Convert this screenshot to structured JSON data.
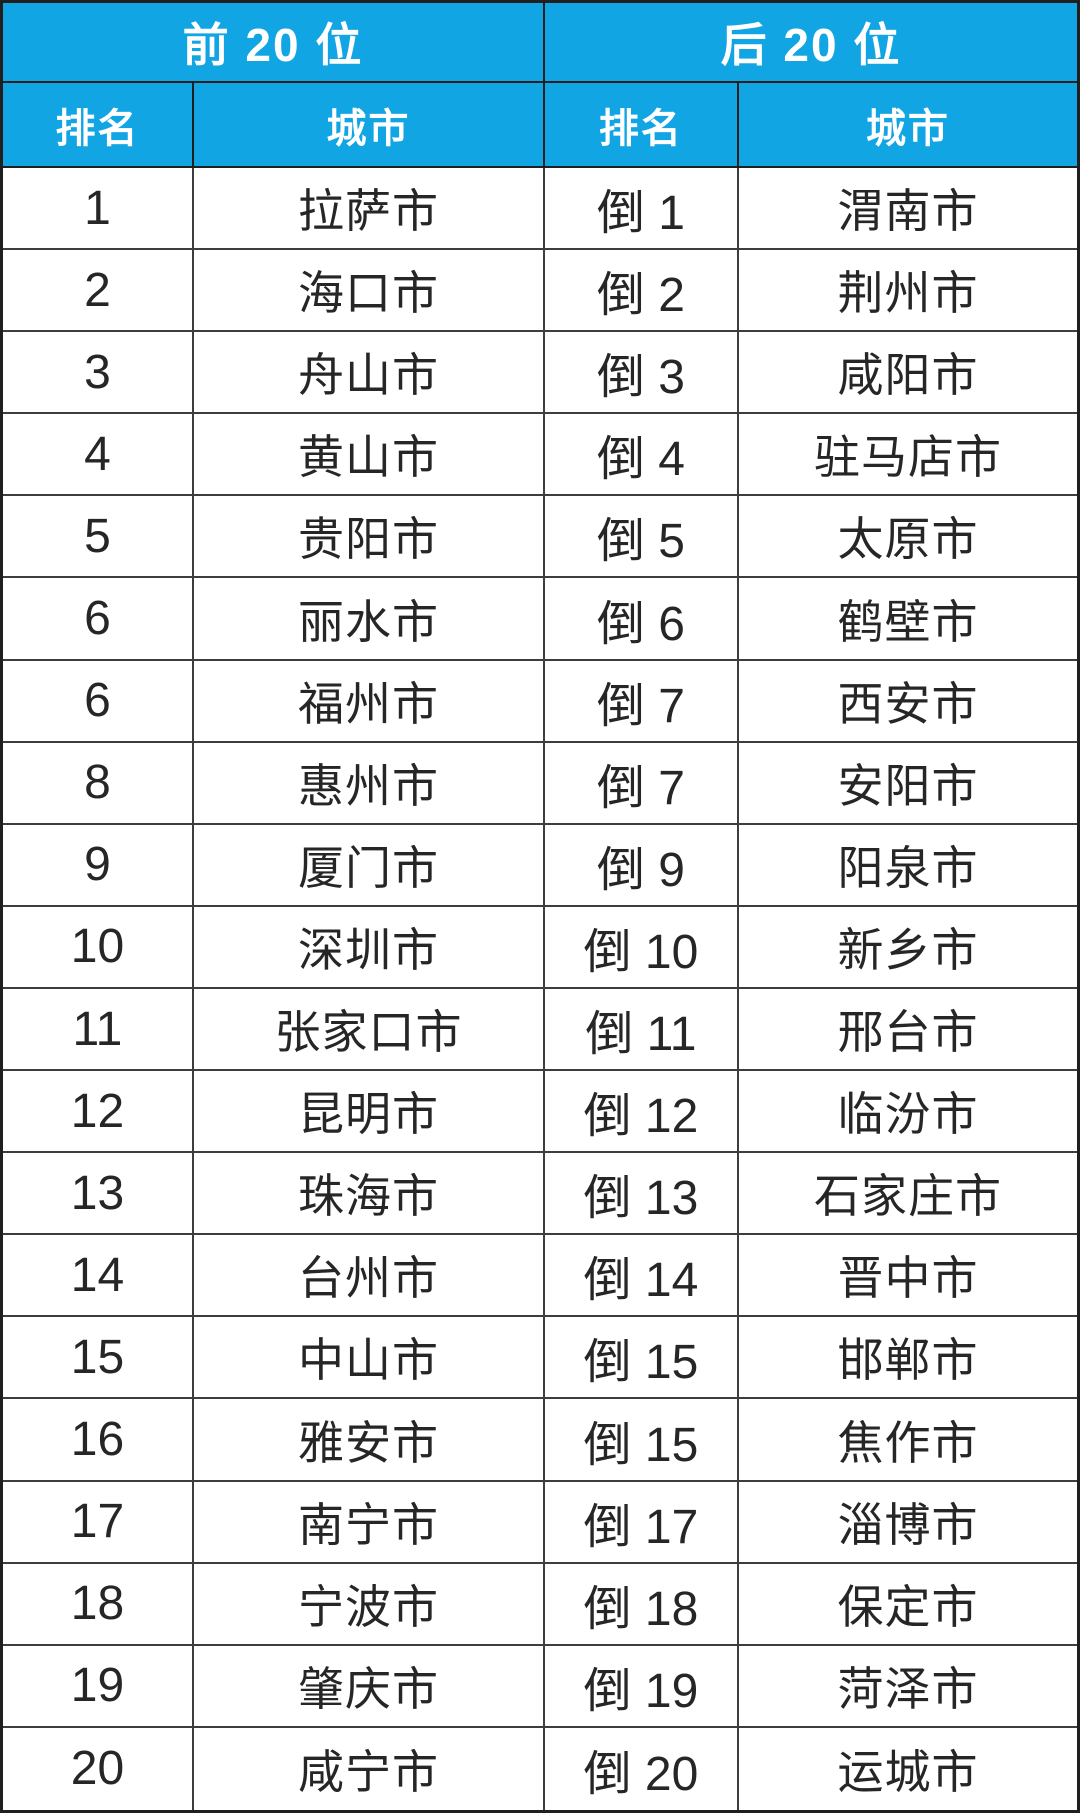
{
  "colors": {
    "header_bg": "#12A5E3",
    "header_text": "#FFFFFF",
    "body_text": "#262626",
    "grid_line": "#3D3D3D",
    "row_bg": "#FFFFFF"
  },
  "chart_data": {
    "type": "table",
    "column_groups": [
      {
        "label": "前 20 位"
      },
      {
        "label": "后 20 位"
      }
    ],
    "columns": [
      "排名",
      "城市",
      "排名",
      "城市"
    ],
    "rows": [
      [
        "1",
        "拉萨市",
        "倒 1",
        "渭南市"
      ],
      [
        "2",
        "海口市",
        "倒 2",
        "荆州市"
      ],
      [
        "3",
        "舟山市",
        "倒 3",
        "咸阳市"
      ],
      [
        "4",
        "黄山市",
        "倒 4",
        "驻马店市"
      ],
      [
        "5",
        "贵阳市",
        "倒 5",
        "太原市"
      ],
      [
        "6",
        "丽水市",
        "倒 6",
        "鹤壁市"
      ],
      [
        "6",
        "福州市",
        "倒 7",
        "西安市"
      ],
      [
        "8",
        "惠州市",
        "倒 7",
        "安阳市"
      ],
      [
        "9",
        "厦门市",
        "倒 9",
        "阳泉市"
      ],
      [
        "10",
        "深圳市",
        "倒 10",
        "新乡市"
      ],
      [
        "11",
        "张家口市",
        "倒 11",
        "邢台市"
      ],
      [
        "12",
        "昆明市",
        "倒 12",
        "临汾市"
      ],
      [
        "13",
        "珠海市",
        "倒 13",
        "石家庄市"
      ],
      [
        "14",
        "台州市",
        "倒 14",
        "晋中市"
      ],
      [
        "15",
        "中山市",
        "倒 15",
        "邯郸市"
      ],
      [
        "16",
        "雅安市",
        "倒 15",
        "焦作市"
      ],
      [
        "17",
        "南宁市",
        "倒 17",
        "淄博市"
      ],
      [
        "18",
        "宁波市",
        "倒 18",
        "保定市"
      ],
      [
        "19",
        "肇庆市",
        "倒 19",
        "菏泽市"
      ],
      [
        "20",
        "咸宁市",
        "倒 20",
        "运城市"
      ]
    ]
  }
}
